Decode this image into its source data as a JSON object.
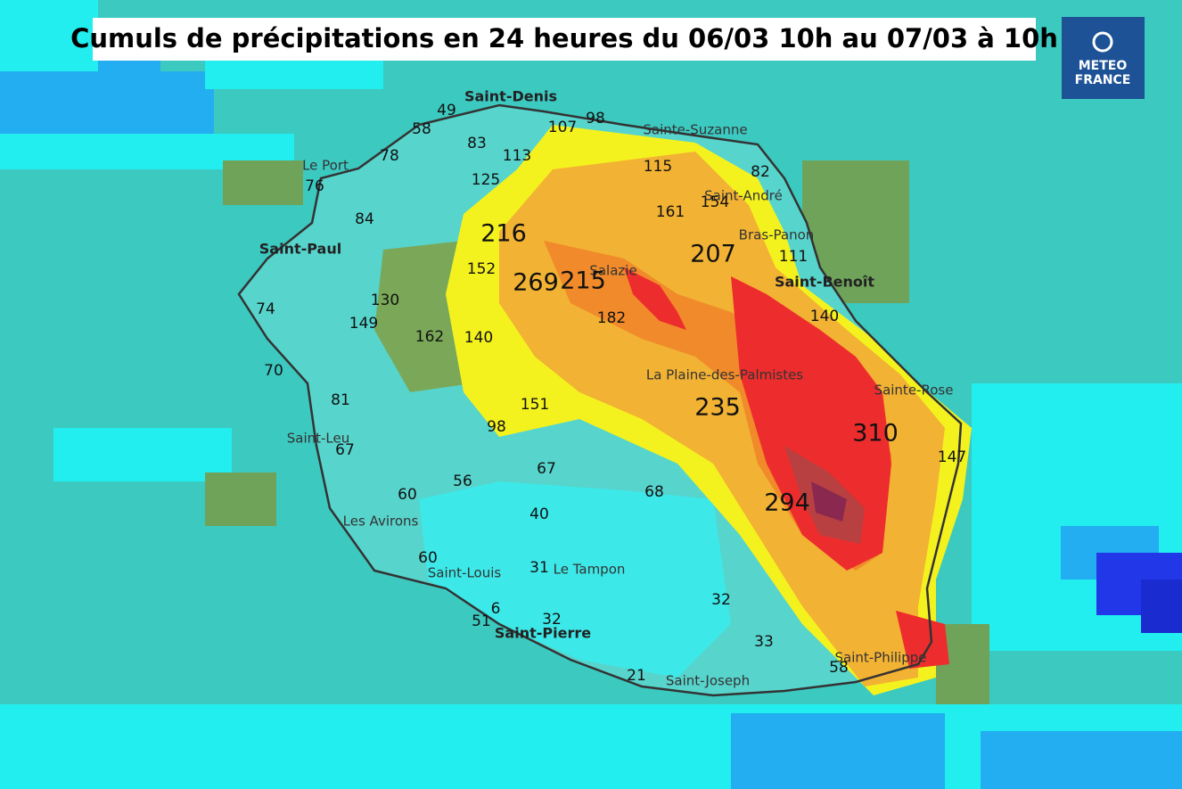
{
  "header": {
    "title": "Cumuls de précipitations en 24 heures du 06/03 10h au 07/03 à 10h"
  },
  "logo": {
    "line1": "METEO",
    "line2": "FRANCE"
  },
  "towns": [
    "Saint-Denis",
    "Sainte-Suzanne",
    "Le Port",
    "Saint-André",
    "Saint-Paul",
    "Bras-Panon",
    "Salazie",
    "Saint-Benoît",
    "La Plaine-des-Palmistes",
    "Sainte-Rose",
    "Saint-Leu",
    "Les Avirons",
    "Saint-Louis",
    "Le Tampon",
    "Saint-Pierre",
    "Saint-Philippe",
    "Saint-Joseph"
  ],
  "rainfall": [
    49,
    58,
    83,
    107,
    98,
    78,
    113,
    115,
    82,
    76,
    125,
    161,
    154,
    84,
    216,
    207,
    111,
    152,
    269,
    215,
    130,
    182,
    140,
    74,
    149,
    162,
    140,
    70,
    81,
    151,
    235,
    98,
    310,
    147,
    67,
    67,
    56,
    60,
    68,
    294,
    40,
    60,
    31,
    32,
    6,
    51,
    32,
    33,
    58,
    21
  ]
}
